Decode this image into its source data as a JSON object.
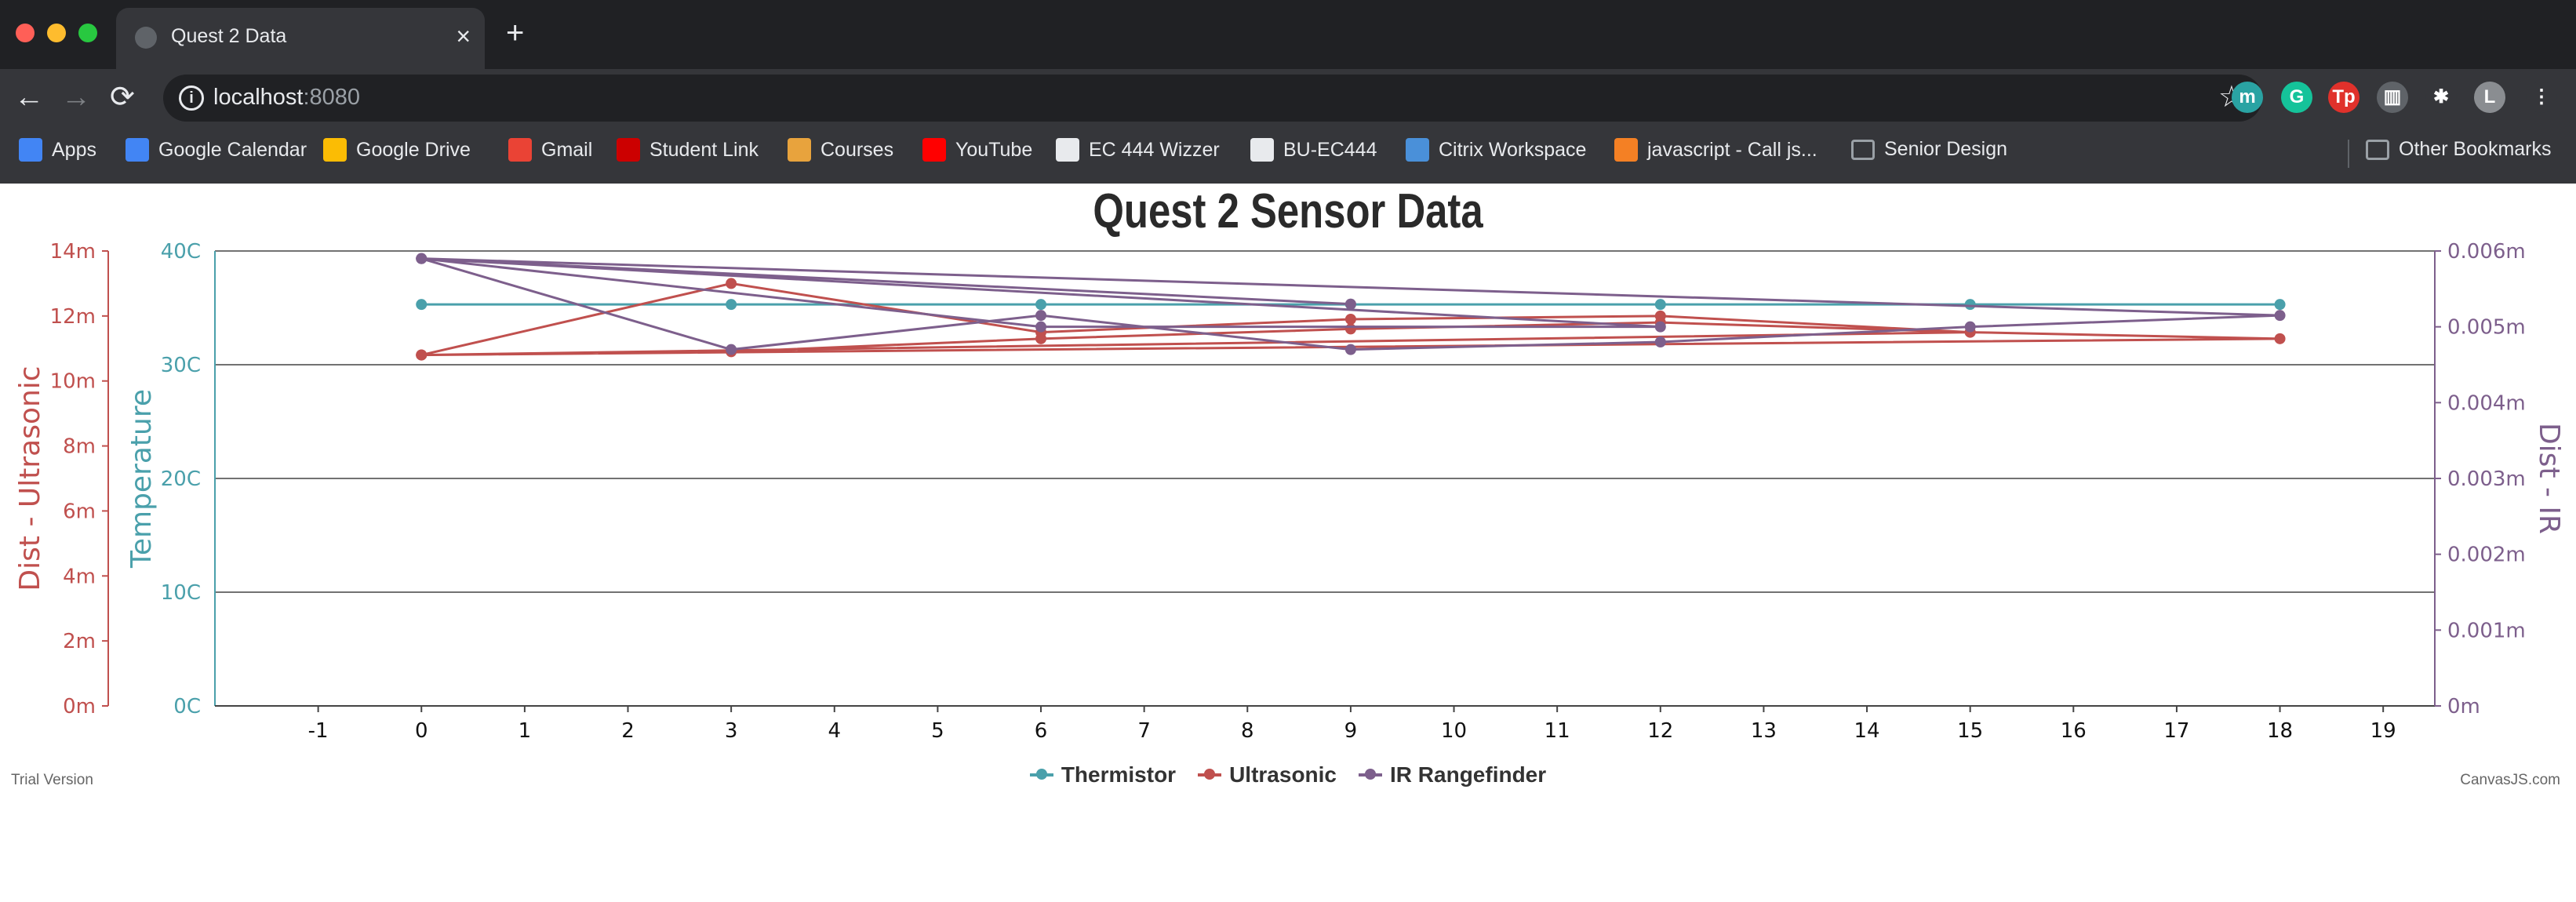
{
  "browser": {
    "tab_title": "Quest 2 Data",
    "tab_close": "×",
    "new_tab": "+",
    "url_host": "localhost",
    "url_port": ":8080",
    "nav": {
      "back": "←",
      "forward": "→",
      "reload": "⟳"
    },
    "star": "☆",
    "extensions": [
      {
        "name": "m",
        "color": "#2aa3a3"
      },
      {
        "name": "G",
        "color": "#15c39a"
      },
      {
        "name": "Tp",
        "color": "#e0312b"
      },
      {
        "name": "▥",
        "color": "#5f6368"
      },
      {
        "name": "✱",
        "color": "#35363a"
      },
      {
        "name": "L",
        "color": "#8a8d91"
      },
      {
        "name": "⋮",
        "color": "#35363a"
      }
    ],
    "bookmarks": [
      {
        "label": "Apps",
        "icon": "apps-icon",
        "color": "#4285f4"
      },
      {
        "label": "Google Calendar",
        "icon": "calendar-icon",
        "color": "#4285f4"
      },
      {
        "label": "Google Drive",
        "icon": "drive-icon",
        "color": "#fbbc04"
      },
      {
        "label": "Gmail",
        "icon": "gmail-icon",
        "color": "#ea4335"
      },
      {
        "label": "Student Link",
        "icon": "bu-icon",
        "color": "#cc0000"
      },
      {
        "label": "Courses",
        "icon": "courses-icon",
        "color": "#e8a33d"
      },
      {
        "label": "YouTube",
        "icon": "youtube-icon",
        "color": "#ff0000"
      },
      {
        "label": "EC 444 Wizzer",
        "icon": "globe-icon",
        "color": "#e8eaed"
      },
      {
        "label": "BU-EC444",
        "icon": "github-icon",
        "color": "#e8eaed"
      },
      {
        "label": "Citrix Workspace",
        "icon": "citrix-icon",
        "color": "#4a90d9"
      },
      {
        "label": "javascript - Call js...",
        "icon": "stackoverflow-icon",
        "color": "#f48024"
      },
      {
        "label": "Senior Design",
        "icon": "folder-icon",
        "color": "#9aa0a6"
      }
    ],
    "other_bookmarks": "Other Bookmarks"
  },
  "page": {
    "trial_text": "Trial Version",
    "credit_text": "CanvasJS.com"
  },
  "chart_data": {
    "type": "line",
    "title": "Quest 2 Sensor Data",
    "xlabel": "",
    "x_ticks": [
      -1,
      0,
      1,
      2,
      3,
      4,
      5,
      6,
      7,
      8,
      9,
      10,
      11,
      12,
      13,
      14,
      15,
      16,
      17,
      18,
      19
    ],
    "xlim": [
      -2,
      19.5
    ],
    "axes": {
      "temperature": {
        "title": "Temperature",
        "ticks": [
          "0C",
          "10C",
          "20C",
          "30C",
          "40C"
        ],
        "ylim": [
          0,
          40
        ],
        "color": "#4aa0ab"
      },
      "ultrasonic": {
        "title": "Dist - Ultrasonic",
        "ticks": [
          "0m",
          "2m",
          "4m",
          "6m",
          "8m",
          "10m",
          "12m",
          "14m"
        ],
        "ylim": [
          0,
          14
        ],
        "color": "#c0504e"
      },
      "ir": {
        "title": "Dist - IR",
        "ticks": [
          "0m",
          "0.001m",
          "0.002m",
          "0.003m",
          "0.004m",
          "0.005m",
          "0.006m"
        ],
        "ylim": [
          0,
          0.006
        ],
        "color": "#7d5f8c"
      }
    },
    "gridlines_on": "temperature",
    "series": [
      {
        "name": "Thermistor",
        "axis": "temperature",
        "color": "#4aa0ab",
        "x": [
          0,
          3,
          6,
          9,
          12,
          15,
          18
        ],
        "y": [
          35.3,
          35.3,
          35.3,
          35.3,
          35.3,
          35.3,
          35.3
        ]
      },
      {
        "name": "Ultrasonic",
        "axis": "ultrasonic",
        "color": "#c0504e",
        "x": [
          0,
          3,
          6,
          9,
          12,
          15,
          18,
          0,
          3,
          6,
          9,
          12,
          15,
          0
        ],
        "y": [
          10.8,
          13.0,
          11.5,
          11.9,
          12.0,
          11.5,
          11.3,
          10.8,
          10.9,
          11.3,
          11.6,
          11.8,
          11.5,
          10.8
        ]
      },
      {
        "name": "IR Rangefinder",
        "axis": "ir",
        "color": "#7d5f8c",
        "x": [
          0,
          3,
          6,
          9,
          12,
          15,
          18,
          0,
          6,
          12,
          0,
          9
        ],
        "y": [
          0.0059,
          0.0047,
          0.00515,
          0.0047,
          0.0048,
          0.005,
          0.00515,
          0.0059,
          0.005,
          0.005,
          0.0059,
          0.0053
        ]
      }
    ],
    "legend": {
      "position": "bottom-center"
    }
  }
}
